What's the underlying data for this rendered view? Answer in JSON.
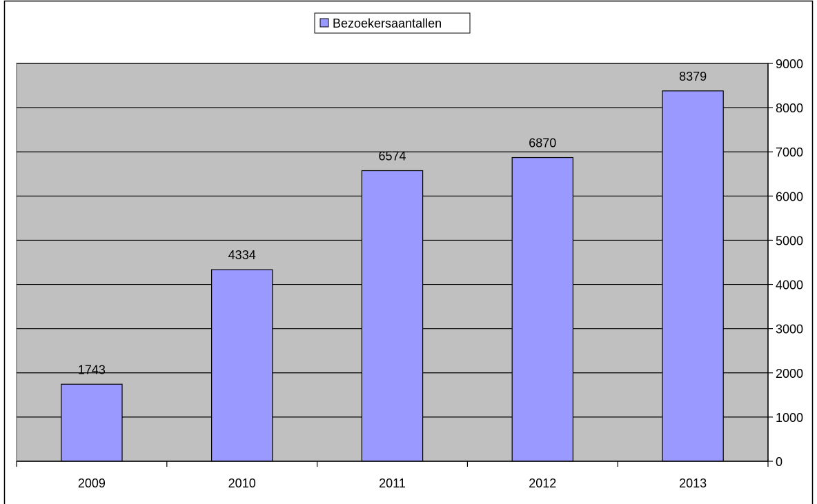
{
  "chart_data": {
    "type": "bar",
    "categories": [
      "2009",
      "2010",
      "2011",
      "2012",
      "2013"
    ],
    "series": [
      {
        "name": "Bezoekersaantallen",
        "values": [
          1743,
          4334,
          6574,
          6870,
          8379
        ]
      }
    ],
    "data_labels": [
      "1743",
      "4334",
      "6574",
      "6870",
      "8379"
    ],
    "y_ticks": [
      "0",
      "1000",
      "2000",
      "3000",
      "4000",
      "5000",
      "6000",
      "7000",
      "8000",
      "9000"
    ],
    "ylim": [
      0,
      9000
    ],
    "y_axis_position": "right",
    "grid": true,
    "legend_position": "top-center",
    "colors": {
      "bar_fill": "#9999ff",
      "plot_background": "#c0c0c0",
      "gridline": "#000000",
      "outline": "#000000"
    }
  }
}
